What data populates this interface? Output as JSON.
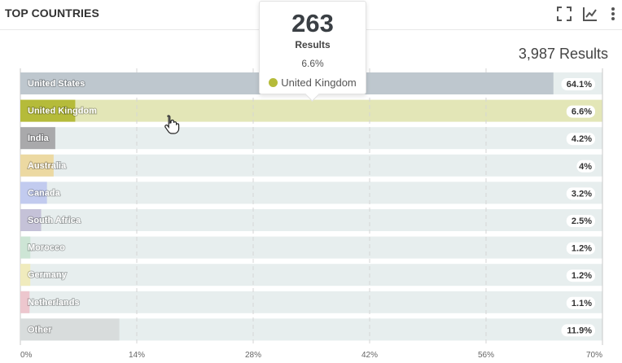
{
  "header": {
    "title": "TOP COUNTRIES"
  },
  "icons": [
    {
      "name": "fullscreen-icon"
    },
    {
      "name": "line-chart-icon"
    },
    {
      "name": "more-vert-icon"
    }
  ],
  "summary": {
    "total_results": "3,987 Results"
  },
  "tooltip": {
    "count": "263",
    "label": "Results",
    "percent": "6.6%",
    "country": "United Kingdom",
    "dot_color": "#b5bb3a"
  },
  "chart_data": {
    "type": "bar",
    "orientation": "horizontal",
    "title": "TOP COUNTRIES",
    "xlim": [
      0,
      70
    ],
    "x_ticks": [
      0,
      14,
      28,
      42,
      56,
      70
    ],
    "x_tick_labels": [
      "0%",
      "14%",
      "28%",
      "42%",
      "56%",
      "70%"
    ],
    "categories": [
      "United States",
      "United Kingdom",
      "India",
      "Australia",
      "Canada",
      "South Africa",
      "Morocco",
      "Germany",
      "Netherlands",
      "Other"
    ],
    "values": [
      64.1,
      6.6,
      4.2,
      4,
      3.2,
      2.5,
      1.2,
      1.2,
      1.1,
      11.9
    ],
    "value_labels": [
      "64.1%",
      "6.6%",
      "4.2%",
      "4%",
      "3.2%",
      "2.5%",
      "1.2%",
      "1.2%",
      "1.1%",
      "11.9%"
    ],
    "colors": [
      "#bec7ce",
      "#b5bb3a",
      "#a9a9ab",
      "#ecd9a2",
      "#c2cbef",
      "#c5c2d8",
      "#cde5d5",
      "#f0ebbd",
      "#edc7ce",
      "#d8dcdc"
    ],
    "highlighted_category": "United Kingdom",
    "highlight_color": "#e3e6b7",
    "track_color": "#e7eeee"
  }
}
